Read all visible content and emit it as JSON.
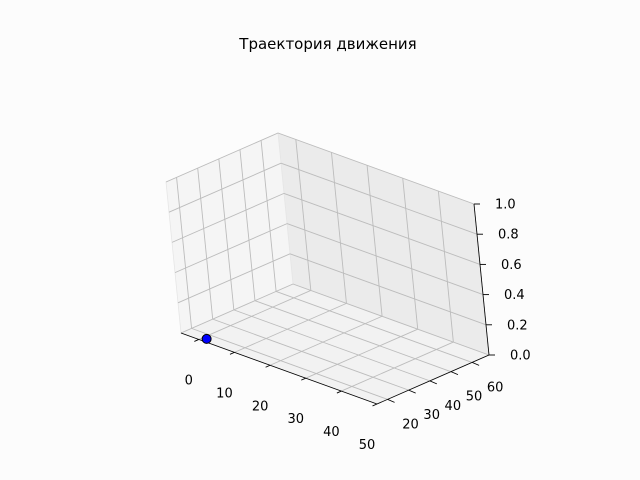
{
  "chart_data": {
    "type": "scatter",
    "projection": "3d",
    "title": "Траектория движения",
    "xlabel": "",
    "ylabel": "",
    "zlabel": "",
    "x_ticks": [
      "0",
      "10",
      "20",
      "30",
      "40",
      "50"
    ],
    "y_ticks": [
      "20",
      "30",
      "40",
      "50",
      "60"
    ],
    "z_ticks": [
      "0.0",
      "0.2",
      "0.4",
      "0.6",
      "0.8",
      "1.0"
    ],
    "xlim": [
      -5,
      50
    ],
    "ylim": [
      15,
      68
    ],
    "zlim": [
      0,
      1
    ],
    "grid": true,
    "points": [
      {
        "x": 1,
        "y": 17,
        "z": 0,
        "color": "#0000ff",
        "edgecolor": "#000000"
      }
    ]
  }
}
